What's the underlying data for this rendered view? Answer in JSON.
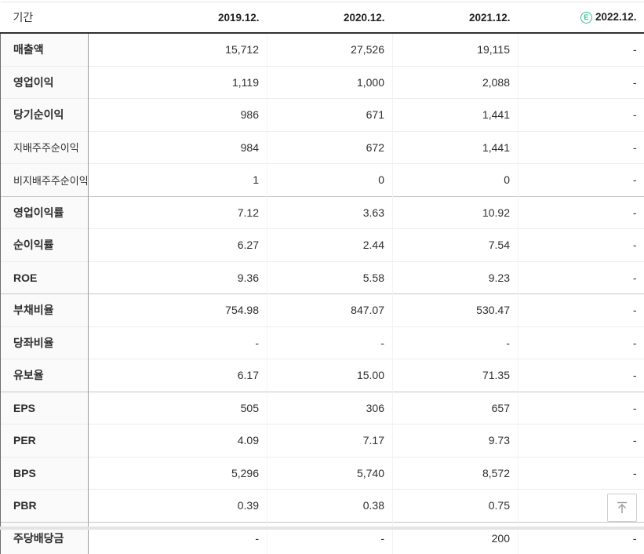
{
  "colors": {
    "estimate_green": "#2bc490",
    "header_border": "#303030",
    "group_separator": "#c6c6c6",
    "row_separator": "#ededed",
    "label_bg": "#fafafa"
  },
  "table": {
    "period_label": "기간",
    "estimate_badge": "E",
    "columns": [
      {
        "label": "2019.12.",
        "estimate": false
      },
      {
        "label": "2020.12.",
        "estimate": false
      },
      {
        "label": "2021.12.",
        "estimate": false
      },
      {
        "label": "2022.12.",
        "estimate": true
      }
    ],
    "rows": [
      {
        "label": "매출액",
        "style": "main",
        "group_start": false,
        "values": [
          "15,712",
          "27,526",
          "19,115",
          "-"
        ]
      },
      {
        "label": "영업이익",
        "style": "main",
        "group_start": false,
        "values": [
          "1,119",
          "1,000",
          "2,088",
          "-"
        ]
      },
      {
        "label": "당기순이익",
        "style": "main",
        "group_start": false,
        "values": [
          "986",
          "671",
          "1,441",
          "-"
        ]
      },
      {
        "label": "지배주주순이익",
        "style": "sub",
        "group_start": false,
        "values": [
          "984",
          "672",
          "1,441",
          "-"
        ]
      },
      {
        "label": "비지배주주순이익",
        "style": "sub",
        "group_start": false,
        "values": [
          "1",
          "0",
          "0",
          "-"
        ]
      },
      {
        "label": "영업이익률",
        "style": "main",
        "group_start": true,
        "values": [
          "7.12",
          "3.63",
          "10.92",
          "-"
        ]
      },
      {
        "label": "순이익률",
        "style": "main",
        "group_start": false,
        "values": [
          "6.27",
          "2.44",
          "7.54",
          "-"
        ]
      },
      {
        "label": "ROE",
        "style": "main",
        "group_start": false,
        "values": [
          "9.36",
          "5.58",
          "9.23",
          "-"
        ]
      },
      {
        "label": "부채비율",
        "style": "main",
        "group_start": true,
        "values": [
          "754.98",
          "847.07",
          "530.47",
          "-"
        ]
      },
      {
        "label": "당좌비율",
        "style": "main",
        "group_start": false,
        "values": [
          "-",
          "-",
          "-",
          "-"
        ]
      },
      {
        "label": "유보율",
        "style": "main",
        "group_start": false,
        "values": [
          "6.17",
          "15.00",
          "71.35",
          "-"
        ]
      },
      {
        "label": "EPS",
        "style": "main",
        "group_start": true,
        "values": [
          "505",
          "306",
          "657",
          "-"
        ]
      },
      {
        "label": "PER",
        "style": "main",
        "group_start": false,
        "values": [
          "4.09",
          "7.17",
          "9.73",
          "-"
        ]
      },
      {
        "label": "BPS",
        "style": "main",
        "group_start": false,
        "values": [
          "5,296",
          "5,740",
          "8,572",
          "-"
        ]
      },
      {
        "label": "PBR",
        "style": "main",
        "group_start": false,
        "values": [
          "0.39",
          "0.38",
          "0.75",
          "-"
        ]
      },
      {
        "label": "주당배당금",
        "style": "main",
        "group_start": true,
        "values": [
          "-",
          "-",
          "200",
          "-"
        ]
      }
    ]
  },
  "scroll_top": {
    "icon": "arrow-to-top"
  }
}
